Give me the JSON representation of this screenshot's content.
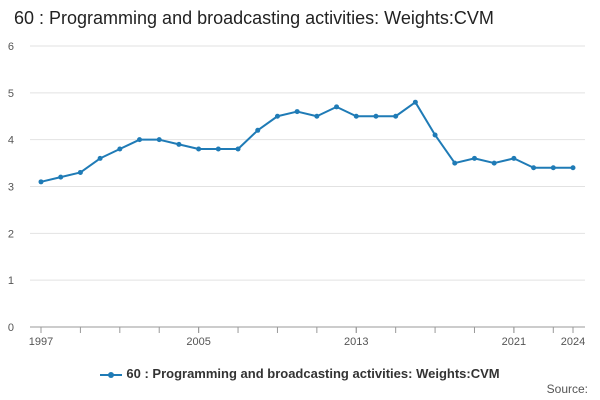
{
  "chart_data": {
    "type": "line",
    "title": "60 : Programming and broadcasting activities: Weights:CVM",
    "xlabel": "",
    "ylabel": "",
    "ylim": [
      0,
      6
    ],
    "yticks": [
      "0",
      "1",
      "2",
      "3",
      "4",
      "5",
      "6"
    ],
    "xticks": [
      "1997",
      "2005",
      "2013",
      "2021",
      "2024"
    ],
    "x": [
      1997,
      1998,
      1999,
      2000,
      2001,
      2002,
      2003,
      2004,
      2005,
      2006,
      2007,
      2008,
      2009,
      2010,
      2011,
      2012,
      2013,
      2014,
      2015,
      2016,
      2017,
      2018,
      2019,
      2020,
      2021,
      2022,
      2023,
      2024
    ],
    "series": [
      {
        "name": "60 : Programming and broadcasting activities: Weights:CVM",
        "color": "#1f7bb6",
        "values": [
          3.1,
          3.2,
          3.3,
          3.6,
          3.8,
          4.0,
          4.0,
          3.9,
          3.8,
          3.8,
          3.8,
          4.2,
          4.5,
          4.6,
          4.5,
          4.7,
          4.5,
          4.5,
          4.5,
          4.8,
          4.1,
          3.5,
          3.6,
          3.5,
          3.6,
          3.4,
          3.4,
          3.4
        ]
      }
    ],
    "grid": true,
    "legend": "bottom"
  },
  "source_label": "Source:"
}
